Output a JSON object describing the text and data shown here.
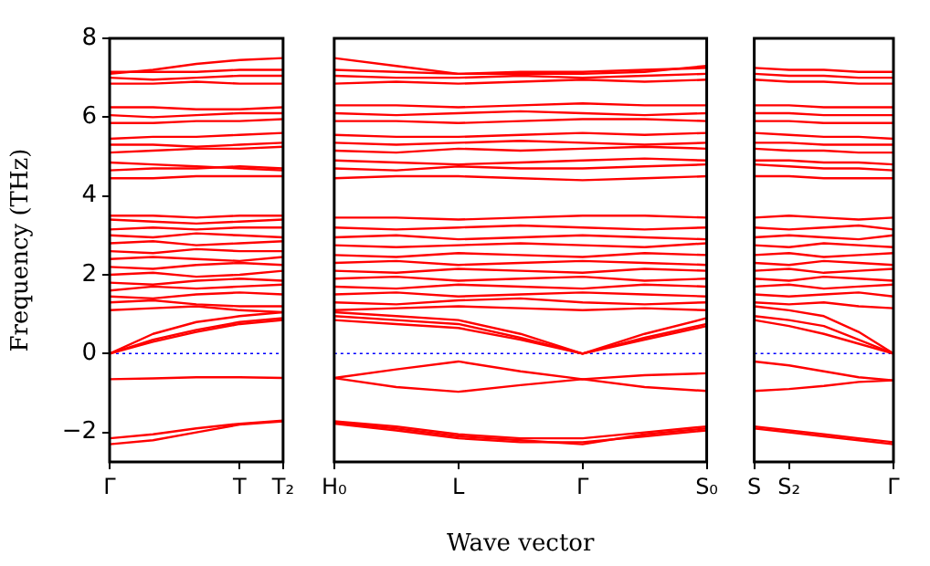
{
  "chart_data": [
    {
      "type": "line",
      "ylabel": "Frequency (THz)",
      "categories": [
        "Γ",
        null,
        null,
        "T",
        "T₂"
      ],
      "ylim": [
        -2.75,
        8
      ],
      "yticks": [
        -2,
        0,
        2,
        4,
        6,
        8
      ],
      "marker": "none",
      "ref_lines": [
        {
          "axis": "y",
          "value": 0,
          "label": null,
          "color": "#0000ff",
          "line_style": "dotted"
        }
      ],
      "series": [
        {
          "color": "#ff0000",
          "values": [
            0,
            0.35,
            0.6,
            0.8,
            0.9
          ]
        },
        {
          "color": "#ff0000",
          "values": [
            0,
            0.3,
            0.55,
            0.75,
            0.85
          ]
        },
        {
          "color": "#ff0000",
          "values": [
            0,
            0.5,
            0.8,
            0.95,
            1.05
          ]
        },
        {
          "color": "#ff0000",
          "values": [
            -0.65,
            -0.63,
            -0.6,
            -0.6,
            -0.62
          ]
        },
        {
          "color": "#ff0000",
          "values": [
            -2.3,
            -2.2,
            -2.0,
            -1.8,
            -1.72
          ]
        },
        {
          "color": "#ff0000",
          "values": [
            -2.15,
            -2.05,
            -1.9,
            -1.78,
            -1.7
          ]
        },
        {
          "color": "#ff0000",
          "values": [
            1.1,
            1.15,
            1.2,
            1.1,
            1.05
          ]
        },
        {
          "color": "#ff0000",
          "values": [
            1.3,
            1.35,
            1.25,
            1.2,
            1.2
          ]
        },
        {
          "color": "#ff0000",
          "values": [
            1.45,
            1.4,
            1.5,
            1.55,
            1.5
          ]
        },
        {
          "color": "#ff0000",
          "values": [
            1.6,
            1.7,
            1.65,
            1.7,
            1.75
          ]
        },
        {
          "color": "#ff0000",
          "values": [
            1.8,
            1.75,
            1.85,
            1.9,
            1.85
          ]
        },
        {
          "color": "#ff0000",
          "values": [
            2.0,
            2.05,
            1.95,
            2.0,
            2.1
          ]
        },
        {
          "color": "#ff0000",
          "values": [
            2.2,
            2.15,
            2.25,
            2.3,
            2.25
          ]
        },
        {
          "color": "#ff0000",
          "values": [
            2.4,
            2.45,
            2.4,
            2.35,
            2.45
          ]
        },
        {
          "color": "#ff0000",
          "values": [
            2.6,
            2.55,
            2.65,
            2.6,
            2.6
          ]
        },
        {
          "color": "#ff0000",
          "values": [
            2.8,
            2.85,
            2.75,
            2.8,
            2.85
          ]
        },
        {
          "color": "#ff0000",
          "values": [
            3.0,
            2.95,
            3.05,
            3.0,
            2.95
          ]
        },
        {
          "color": "#ff0000",
          "values": [
            3.15,
            3.2,
            3.15,
            3.2,
            3.2
          ]
        },
        {
          "color": "#ff0000",
          "values": [
            3.4,
            3.35,
            3.3,
            3.35,
            3.4
          ]
        },
        {
          "color": "#ff0000",
          "values": [
            3.5,
            3.5,
            3.45,
            3.5,
            3.5
          ]
        },
        {
          "color": "#ff0000",
          "values": [
            4.45,
            4.45,
            4.5,
            4.5,
            4.5
          ]
        },
        {
          "color": "#ff0000",
          "values": [
            4.65,
            4.7,
            4.7,
            4.75,
            4.7
          ]
        },
        {
          "color": "#ff0000",
          "values": [
            4.85,
            4.8,
            4.75,
            4.7,
            4.65
          ]
        },
        {
          "color": "#ff0000",
          "values": [
            5.1,
            5.15,
            5.2,
            5.2,
            5.25
          ]
        },
        {
          "color": "#ff0000",
          "values": [
            5.3,
            5.3,
            5.25,
            5.3,
            5.35
          ]
        },
        {
          "color": "#ff0000",
          "values": [
            5.45,
            5.5,
            5.5,
            5.55,
            5.6
          ]
        },
        {
          "color": "#ff0000",
          "values": [
            5.85,
            5.85,
            5.9,
            5.9,
            5.95
          ]
        },
        {
          "color": "#ff0000",
          "values": [
            6.05,
            6.0,
            6.05,
            6.1,
            6.1
          ]
        },
        {
          "color": "#ff0000",
          "values": [
            6.25,
            6.25,
            6.2,
            6.2,
            6.25
          ]
        },
        {
          "color": "#ff0000",
          "values": [
            6.85,
            6.85,
            6.9,
            6.85,
            6.85
          ]
        },
        {
          "color": "#ff0000",
          "values": [
            7.0,
            6.95,
            7.0,
            7.05,
            7.05
          ]
        },
        {
          "color": "#ff0000",
          "values": [
            7.15,
            7.15,
            7.15,
            7.2,
            7.2
          ]
        },
        {
          "color": "#ff0000",
          "values": [
            7.1,
            7.2,
            7.35,
            7.45,
            7.5
          ]
        }
      ]
    },
    {
      "type": "line",
      "xlabel": "Wave vector",
      "categories": [
        "H₀",
        null,
        "L",
        null,
        "Γ",
        null,
        "S₀"
      ],
      "ylim": [
        -2.75,
        8
      ],
      "yticks": [
        -2,
        0,
        2,
        4,
        6,
        8
      ],
      "tick_labels": "x",
      "marker": "none",
      "ref_lines": [
        {
          "axis": "y",
          "value": 0,
          "label": null,
          "color": "#0000ff",
          "line_style": "dotted"
        }
      ],
      "series": [
        {
          "color": "#ff0000",
          "values": [
            0.95,
            0.85,
            0.75,
            0.4,
            0,
            0.4,
            0.75
          ]
        },
        {
          "color": "#ff0000",
          "values": [
            0.85,
            0.75,
            0.65,
            0.35,
            0,
            0.35,
            0.7
          ]
        },
        {
          "color": "#ff0000",
          "values": [
            1.05,
            0.95,
            0.85,
            0.5,
            0,
            0.5,
            0.9
          ]
        },
        {
          "color": "#ff0000",
          "values": [
            -0.62,
            -0.4,
            -0.2,
            -0.45,
            -0.65,
            -0.55,
            -0.5
          ]
        },
        {
          "color": "#ff0000",
          "values": [
            -0.62,
            -0.85,
            -0.97,
            -0.8,
            -0.65,
            -0.85,
            -0.95
          ]
        },
        {
          "color": "#ff0000",
          "values": [
            -1.72,
            -1.85,
            -2.05,
            -2.15,
            -2.15,
            -2.0,
            -1.85
          ]
        },
        {
          "color": "#ff0000",
          "values": [
            -1.75,
            -1.9,
            -2.1,
            -2.2,
            -2.3,
            -2.05,
            -1.9
          ]
        },
        {
          "color": "#ff0000",
          "values": [
            -1.78,
            -1.95,
            -2.15,
            -2.25,
            -2.25,
            -2.1,
            -1.95
          ]
        },
        {
          "color": "#ff0000",
          "values": [
            1.1,
            1.15,
            1.2,
            1.15,
            1.1,
            1.15,
            1.1
          ]
        },
        {
          "color": "#ff0000",
          "values": [
            1.3,
            1.25,
            1.35,
            1.4,
            1.3,
            1.25,
            1.3
          ]
        },
        {
          "color": "#ff0000",
          "values": [
            1.5,
            1.55,
            1.45,
            1.5,
            1.55,
            1.5,
            1.45
          ]
        },
        {
          "color": "#ff0000",
          "values": [
            1.7,
            1.65,
            1.75,
            1.7,
            1.65,
            1.75,
            1.7
          ]
        },
        {
          "color": "#ff0000",
          "values": [
            1.9,
            1.95,
            1.85,
            1.9,
            1.95,
            1.85,
            1.9
          ]
        },
        {
          "color": "#ff0000",
          "values": [
            2.1,
            2.05,
            2.15,
            2.1,
            2.05,
            2.15,
            2.1
          ]
        },
        {
          "color": "#ff0000",
          "values": [
            2.3,
            2.35,
            2.25,
            2.3,
            2.35,
            2.3,
            2.25
          ]
        },
        {
          "color": "#ff0000",
          "values": [
            2.5,
            2.45,
            2.55,
            2.5,
            2.45,
            2.55,
            2.5
          ]
        },
        {
          "color": "#ff0000",
          "values": [
            2.75,
            2.7,
            2.75,
            2.8,
            2.75,
            2.7,
            2.8
          ]
        },
        {
          "color": "#ff0000",
          "values": [
            2.95,
            3.0,
            2.9,
            2.95,
            3.0,
            2.95,
            2.9
          ]
        },
        {
          "color": "#ff0000",
          "values": [
            3.2,
            3.15,
            3.2,
            3.25,
            3.2,
            3.15,
            3.2
          ]
        },
        {
          "color": "#ff0000",
          "values": [
            3.45,
            3.45,
            3.4,
            3.45,
            3.5,
            3.5,
            3.45
          ]
        },
        {
          "color": "#ff0000",
          "values": [
            4.45,
            4.5,
            4.5,
            4.45,
            4.4,
            4.45,
            4.5
          ]
        },
        {
          "color": "#ff0000",
          "values": [
            4.7,
            4.65,
            4.75,
            4.7,
            4.7,
            4.75,
            4.8
          ]
        },
        {
          "color": "#ff0000",
          "values": [
            4.9,
            4.85,
            4.8,
            4.85,
            4.9,
            4.95,
            4.9
          ]
        },
        {
          "color": "#ff0000",
          "values": [
            5.15,
            5.1,
            5.2,
            5.15,
            5.2,
            5.25,
            5.2
          ]
        },
        {
          "color": "#ff0000",
          "values": [
            5.35,
            5.3,
            5.35,
            5.4,
            5.35,
            5.3,
            5.35
          ]
        },
        {
          "color": "#ff0000",
          "values": [
            5.55,
            5.5,
            5.5,
            5.55,
            5.6,
            5.55,
            5.6
          ]
        },
        {
          "color": "#ff0000",
          "values": [
            5.9,
            5.9,
            5.85,
            5.9,
            5.95,
            5.95,
            5.9
          ]
        },
        {
          "color": "#ff0000",
          "values": [
            6.1,
            6.05,
            6.1,
            6.15,
            6.1,
            6.05,
            6.1
          ]
        },
        {
          "color": "#ff0000",
          "values": [
            6.3,
            6.3,
            6.25,
            6.3,
            6.35,
            6.3,
            6.3
          ]
        },
        {
          "color": "#ff0000",
          "values": [
            6.85,
            6.9,
            6.85,
            6.9,
            6.95,
            6.9,
            6.95
          ]
        },
        {
          "color": "#ff0000",
          "values": [
            7.05,
            7.0,
            7.0,
            7.05,
            7.0,
            7.05,
            7.1
          ]
        },
        {
          "color": "#ff0000",
          "values": [
            7.2,
            7.15,
            7.1,
            7.15,
            7.15,
            7.2,
            7.25
          ]
        },
        {
          "color": "#ff0000",
          "values": [
            7.5,
            7.3,
            7.1,
            7.1,
            7.1,
            7.15,
            7.3
          ]
        }
      ]
    },
    {
      "type": "line",
      "categories": [
        "S",
        "S₂",
        null,
        null,
        "Γ"
      ],
      "ylim": [
        -2.75,
        8
      ],
      "yticks": [
        -2,
        0,
        2,
        4,
        6,
        8
      ],
      "tick_labels": "x",
      "marker": "none",
      "ref_lines": [
        {
          "axis": "y",
          "value": 0,
          "label": null,
          "color": "#0000ff",
          "line_style": "dotted"
        }
      ],
      "series": [
        {
          "color": "#ff0000",
          "values": [
            0.95,
            0.85,
            0.7,
            0.35,
            0
          ]
        },
        {
          "color": "#ff0000",
          "values": [
            0.85,
            0.7,
            0.5,
            0.25,
            0
          ]
        },
        {
          "color": "#ff0000",
          "values": [
            1.2,
            1.1,
            0.95,
            0.55,
            0
          ]
        },
        {
          "color": "#ff0000",
          "values": [
            -0.2,
            -0.3,
            -0.45,
            -0.6,
            -0.68
          ]
        },
        {
          "color": "#ff0000",
          "values": [
            -0.95,
            -0.9,
            -0.82,
            -0.72,
            -0.68
          ]
        },
        {
          "color": "#ff0000",
          "values": [
            -1.85,
            -1.95,
            -2.05,
            -2.15,
            -2.25
          ]
        },
        {
          "color": "#ff0000",
          "values": [
            -1.9,
            -2.0,
            -2.1,
            -2.2,
            -2.3
          ]
        },
        {
          "color": "#ff0000",
          "values": [
            1.3,
            1.25,
            1.3,
            1.2,
            1.15
          ]
        },
        {
          "color": "#ff0000",
          "values": [
            1.5,
            1.45,
            1.5,
            1.55,
            1.45
          ]
        },
        {
          "color": "#ff0000",
          "values": [
            1.7,
            1.75,
            1.65,
            1.7,
            1.75
          ]
        },
        {
          "color": "#ff0000",
          "values": [
            1.9,
            1.85,
            1.95,
            1.9,
            1.85
          ]
        },
        {
          "color": "#ff0000",
          "values": [
            2.1,
            2.15,
            2.05,
            2.1,
            2.15
          ]
        },
        {
          "color": "#ff0000",
          "values": [
            2.3,
            2.25,
            2.35,
            2.3,
            2.25
          ]
        },
        {
          "color": "#ff0000",
          "values": [
            2.5,
            2.55,
            2.45,
            2.5,
            2.55
          ]
        },
        {
          "color": "#ff0000",
          "values": [
            2.75,
            2.7,
            2.8,
            2.75,
            2.7
          ]
        },
        {
          "color": "#ff0000",
          "values": [
            2.95,
            3.0,
            2.95,
            2.9,
            3.0
          ]
        },
        {
          "color": "#ff0000",
          "values": [
            3.2,
            3.15,
            3.2,
            3.25,
            3.15
          ]
        },
        {
          "color": "#ff0000",
          "values": [
            3.45,
            3.5,
            3.45,
            3.4,
            3.45
          ]
        },
        {
          "color": "#ff0000",
          "values": [
            4.5,
            4.5,
            4.45,
            4.45,
            4.45
          ]
        },
        {
          "color": "#ff0000",
          "values": [
            4.8,
            4.75,
            4.7,
            4.7,
            4.65
          ]
        },
        {
          "color": "#ff0000",
          "values": [
            4.9,
            4.9,
            4.85,
            4.85,
            4.8
          ]
        },
        {
          "color": "#ff0000",
          "values": [
            5.2,
            5.15,
            5.15,
            5.1,
            5.1
          ]
        },
        {
          "color": "#ff0000",
          "values": [
            5.35,
            5.35,
            5.3,
            5.3,
            5.3
          ]
        },
        {
          "color": "#ff0000",
          "values": [
            5.6,
            5.55,
            5.5,
            5.5,
            5.45
          ]
        },
        {
          "color": "#ff0000",
          "values": [
            5.9,
            5.9,
            5.85,
            5.85,
            5.85
          ]
        },
        {
          "color": "#ff0000",
          "values": [
            6.1,
            6.1,
            6.05,
            6.05,
            6.05
          ]
        },
        {
          "color": "#ff0000",
          "values": [
            6.3,
            6.3,
            6.25,
            6.25,
            6.25
          ]
        },
        {
          "color": "#ff0000",
          "values": [
            6.95,
            6.9,
            6.9,
            6.85,
            6.85
          ]
        },
        {
          "color": "#ff0000",
          "values": [
            7.1,
            7.05,
            7.05,
            7.0,
            7.0
          ]
        },
        {
          "color": "#ff0000",
          "values": [
            7.25,
            7.2,
            7.2,
            7.15,
            7.15
          ]
        }
      ]
    }
  ]
}
